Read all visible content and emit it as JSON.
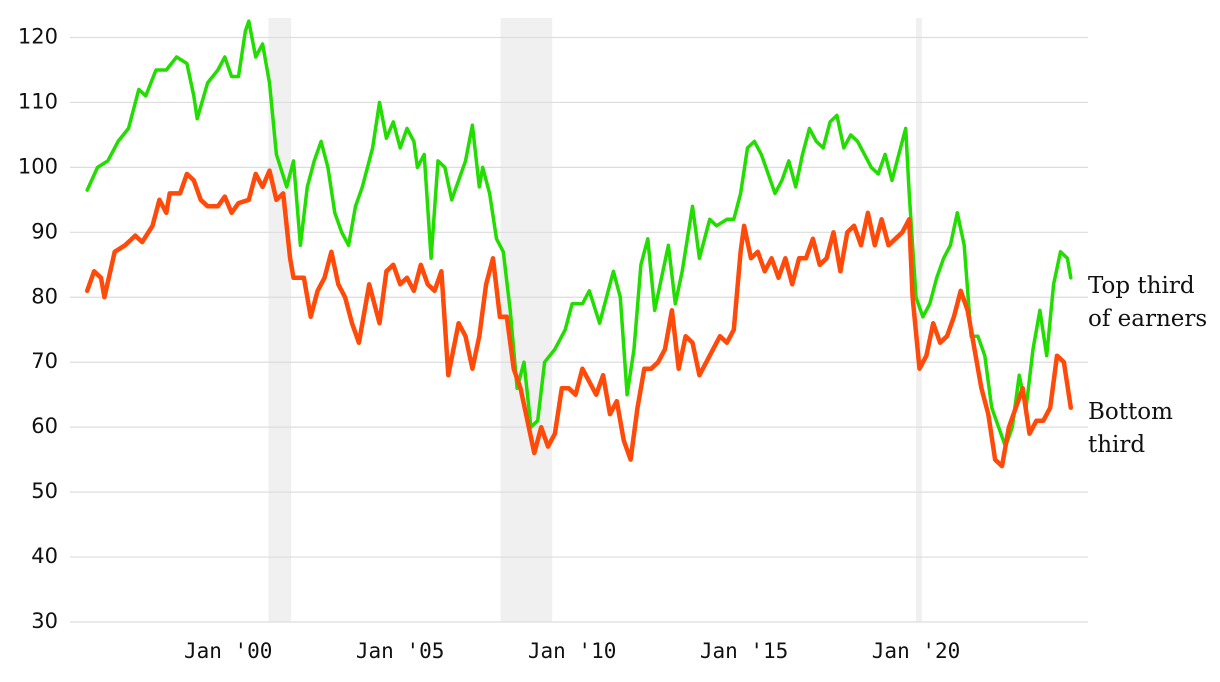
{
  "chart_data": {
    "type": "line",
    "xlim": [
      1995.4,
      2025
    ],
    "ylim": [
      30,
      123
    ],
    "yticks": [
      30,
      40,
      50,
      60,
      70,
      80,
      90,
      100,
      110,
      120
    ],
    "xticks": [
      {
        "value": 2000,
        "label": "Jan '00"
      },
      {
        "value": 2005,
        "label": "Jan '05"
      },
      {
        "value": 2010,
        "label": "Jan '10"
      },
      {
        "value": 2015,
        "label": "Jan '15"
      },
      {
        "value": 2020,
        "label": "Jan '20"
      }
    ],
    "grid": true,
    "shaded_periods": [
      [
        2001.17,
        2001.83
      ],
      [
        2007.92,
        2009.42
      ],
      [
        2020.0,
        2020.17
      ]
    ],
    "series": [
      {
        "name": "Top third of earners",
        "color": "#22dd00",
        "x": [
          1995.9,
          1996.2,
          1996.5,
          1996.8,
          1997.1,
          1997.4,
          1997.6,
          1997.9,
          1998.2,
          1998.5,
          1998.8,
          1999.0,
          1999.1,
          1999.4,
          1999.7,
          1999.9,
          2000.1,
          2000.3,
          2000.5,
          2000.6,
          2000.8,
          2001.0,
          2001.2,
          2001.4,
          2001.7,
          2001.9,
          2002.1,
          2002.3,
          2002.5,
          2002.7,
          2002.9,
          2003.1,
          2003.3,
          2003.5,
          2003.7,
          2003.9,
          2004.2,
          2004.4,
          2004.6,
          2004.8,
          2005.0,
          2005.2,
          2005.4,
          2005.5,
          2005.7,
          2005.9,
          2006.1,
          2006.3,
          2006.5,
          2006.7,
          2006.9,
          2007.1,
          2007.3,
          2007.4,
          2007.6,
          2007.8,
          2008.0,
          2008.2,
          2008.4,
          2008.6,
          2008.8,
          2009.0,
          2009.2,
          2009.5,
          2009.8,
          2010.0,
          2010.3,
          2010.5,
          2010.8,
          2011.0,
          2011.2,
          2011.4,
          2011.6,
          2011.8,
          2012.0,
          2012.2,
          2012.4,
          2012.6,
          2012.8,
          2013.0,
          2013.2,
          2013.5,
          2013.7,
          2014.0,
          2014.2,
          2014.5,
          2014.7,
          2014.9,
          2015.1,
          2015.3,
          2015.5,
          2015.7,
          2015.9,
          2016.1,
          2016.3,
          2016.5,
          2016.7,
          2016.9,
          2017.1,
          2017.3,
          2017.5,
          2017.7,
          2017.9,
          2018.1,
          2018.3,
          2018.5,
          2018.7,
          2018.9,
          2019.1,
          2019.3,
          2019.5,
          2019.7,
          2019.8,
          2020.0,
          2020.2,
          2020.4,
          2020.6,
          2020.8,
          2021.0,
          2021.2,
          2021.4,
          2021.6,
          2021.8,
          2022.0,
          2022.2,
          2022.4,
          2022.6,
          2022.8,
          2023.0,
          2023.2,
          2023.4,
          2023.6,
          2023.8,
          2024.0,
          2024.2,
          2024.4,
          2024.5
        ],
        "values": [
          96.5,
          100,
          101,
          104,
          106,
          112,
          111,
          115,
          115,
          117,
          116,
          111,
          107.5,
          113,
          115,
          117,
          114,
          114,
          121,
          122.5,
          117,
          119,
          113,
          102,
          97,
          101,
          88,
          97,
          101,
          104,
          100,
          93,
          90,
          88,
          94,
          97,
          103,
          110,
          104.5,
          107,
          103,
          106,
          104,
          100,
          102,
          86,
          101,
          100,
          95,
          98,
          101,
          106.5,
          97,
          100,
          96,
          89,
          87,
          78,
          66,
          70,
          60,
          61,
          70,
          72,
          75,
          79,
          79,
          81,
          76,
          80,
          84,
          80,
          65,
          72,
          85,
          89,
          78,
          83,
          88,
          79,
          84,
          94,
          86,
          92,
          91,
          92,
          92,
          96,
          103,
          104,
          102,
          99,
          96,
          98,
          101,
          97,
          102,
          106,
          104,
          103,
          107,
          108,
          103,
          105,
          104,
          102,
          100,
          99,
          102,
          98,
          102,
          106,
          96,
          80,
          77,
          79,
          83,
          86,
          88,
          93,
          88,
          74,
          74,
          71,
          63,
          60,
          57,
          60,
          68,
          63,
          72,
          78,
          71,
          82,
          87,
          86,
          83
        ]
      },
      {
        "name": "Bottom third",
        "color": "#ff4a0a",
        "x": [
          1995.9,
          1996.1,
          1996.3,
          1996.4,
          1996.7,
          1997.0,
          1997.3,
          1997.5,
          1997.8,
          1998.0,
          1998.2,
          1998.3,
          1998.6,
          1998.8,
          1999.0,
          1999.2,
          1999.4,
          1999.7,
          1999.9,
          2000.1,
          2000.3,
          2000.6,
          2000.8,
          2001.0,
          2001.2,
          2001.4,
          2001.6,
          2001.8,
          2001.9,
          2002.2,
          2002.4,
          2002.6,
          2002.8,
          2003.0,
          2003.2,
          2003.4,
          2003.6,
          2003.8,
          2004.0,
          2004.1,
          2004.4,
          2004.6,
          2004.8,
          2005.0,
          2005.2,
          2005.4,
          2005.6,
          2005.8,
          2006.0,
          2006.2,
          2006.4,
          2006.7,
          2006.9,
          2007.1,
          2007.3,
          2007.5,
          2007.7,
          2007.9,
          2008.1,
          2008.3,
          2008.5,
          2008.7,
          2008.9,
          2009.1,
          2009.3,
          2009.5,
          2009.7,
          2009.9,
          2010.1,
          2010.3,
          2010.5,
          2010.7,
          2010.9,
          2011.1,
          2011.3,
          2011.5,
          2011.7,
          2011.9,
          2012.1,
          2012.3,
          2012.5,
          2012.7,
          2012.9,
          2013.1,
          2013.3,
          2013.5,
          2013.7,
          2013.9,
          2014.1,
          2014.3,
          2014.5,
          2014.7,
          2014.9,
          2015.0,
          2015.2,
          2015.4,
          2015.6,
          2015.8,
          2016.0,
          2016.2,
          2016.4,
          2016.6,
          2016.8,
          2017.0,
          2017.2,
          2017.4,
          2017.6,
          2017.8,
          2018.0,
          2018.2,
          2018.4,
          2018.6,
          2018.8,
          2019.0,
          2019.2,
          2019.4,
          2019.6,
          2019.8,
          2019.9,
          2020.1,
          2020.3,
          2020.5,
          2020.7,
          2020.9,
          2021.1,
          2021.3,
          2021.5,
          2021.7,
          2021.9,
          2022.1,
          2022.3,
          2022.5,
          2022.7,
          2022.9,
          2023.1,
          2023.3,
          2023.5,
          2023.7,
          2023.9,
          2024.1,
          2024.3,
          2024.5
        ],
        "values": [
          81,
          84,
          83,
          80,
          87,
          88,
          89.5,
          88.5,
          91,
          95,
          93,
          96,
          96,
          99,
          98,
          95,
          94,
          94,
          95.5,
          93,
          94.5,
          95,
          99,
          97,
          99.5,
          95,
          96,
          86,
          83,
          83,
          77,
          81,
          83,
          87,
          82,
          80,
          76,
          73,
          79,
          82,
          76,
          84,
          85,
          82,
          83,
          81,
          85,
          82,
          81,
          84,
          68,
          76,
          74,
          69,
          74,
          82,
          86,
          77,
          77,
          69,
          66,
          61,
          56,
          60,
          57,
          59,
          66,
          66,
          65,
          69,
          67,
          65,
          68,
          62,
          64,
          58,
          55,
          63,
          69,
          69,
          70,
          72,
          78,
          69,
          74,
          73,
          68,
          70,
          72,
          74,
          73,
          75,
          87,
          91,
          86,
          87,
          84,
          86,
          83,
          86,
          82,
          86,
          86,
          89,
          85,
          86,
          90,
          84,
          90,
          91,
          88,
          93,
          88,
          92,
          88,
          89,
          90,
          92,
          80,
          69,
          71,
          76,
          73,
          74,
          77,
          81,
          78,
          72,
          66,
          62,
          55,
          54,
          60,
          63,
          66,
          59,
          61,
          61,
          63,
          71,
          70,
          63
        ]
      }
    ]
  }
}
